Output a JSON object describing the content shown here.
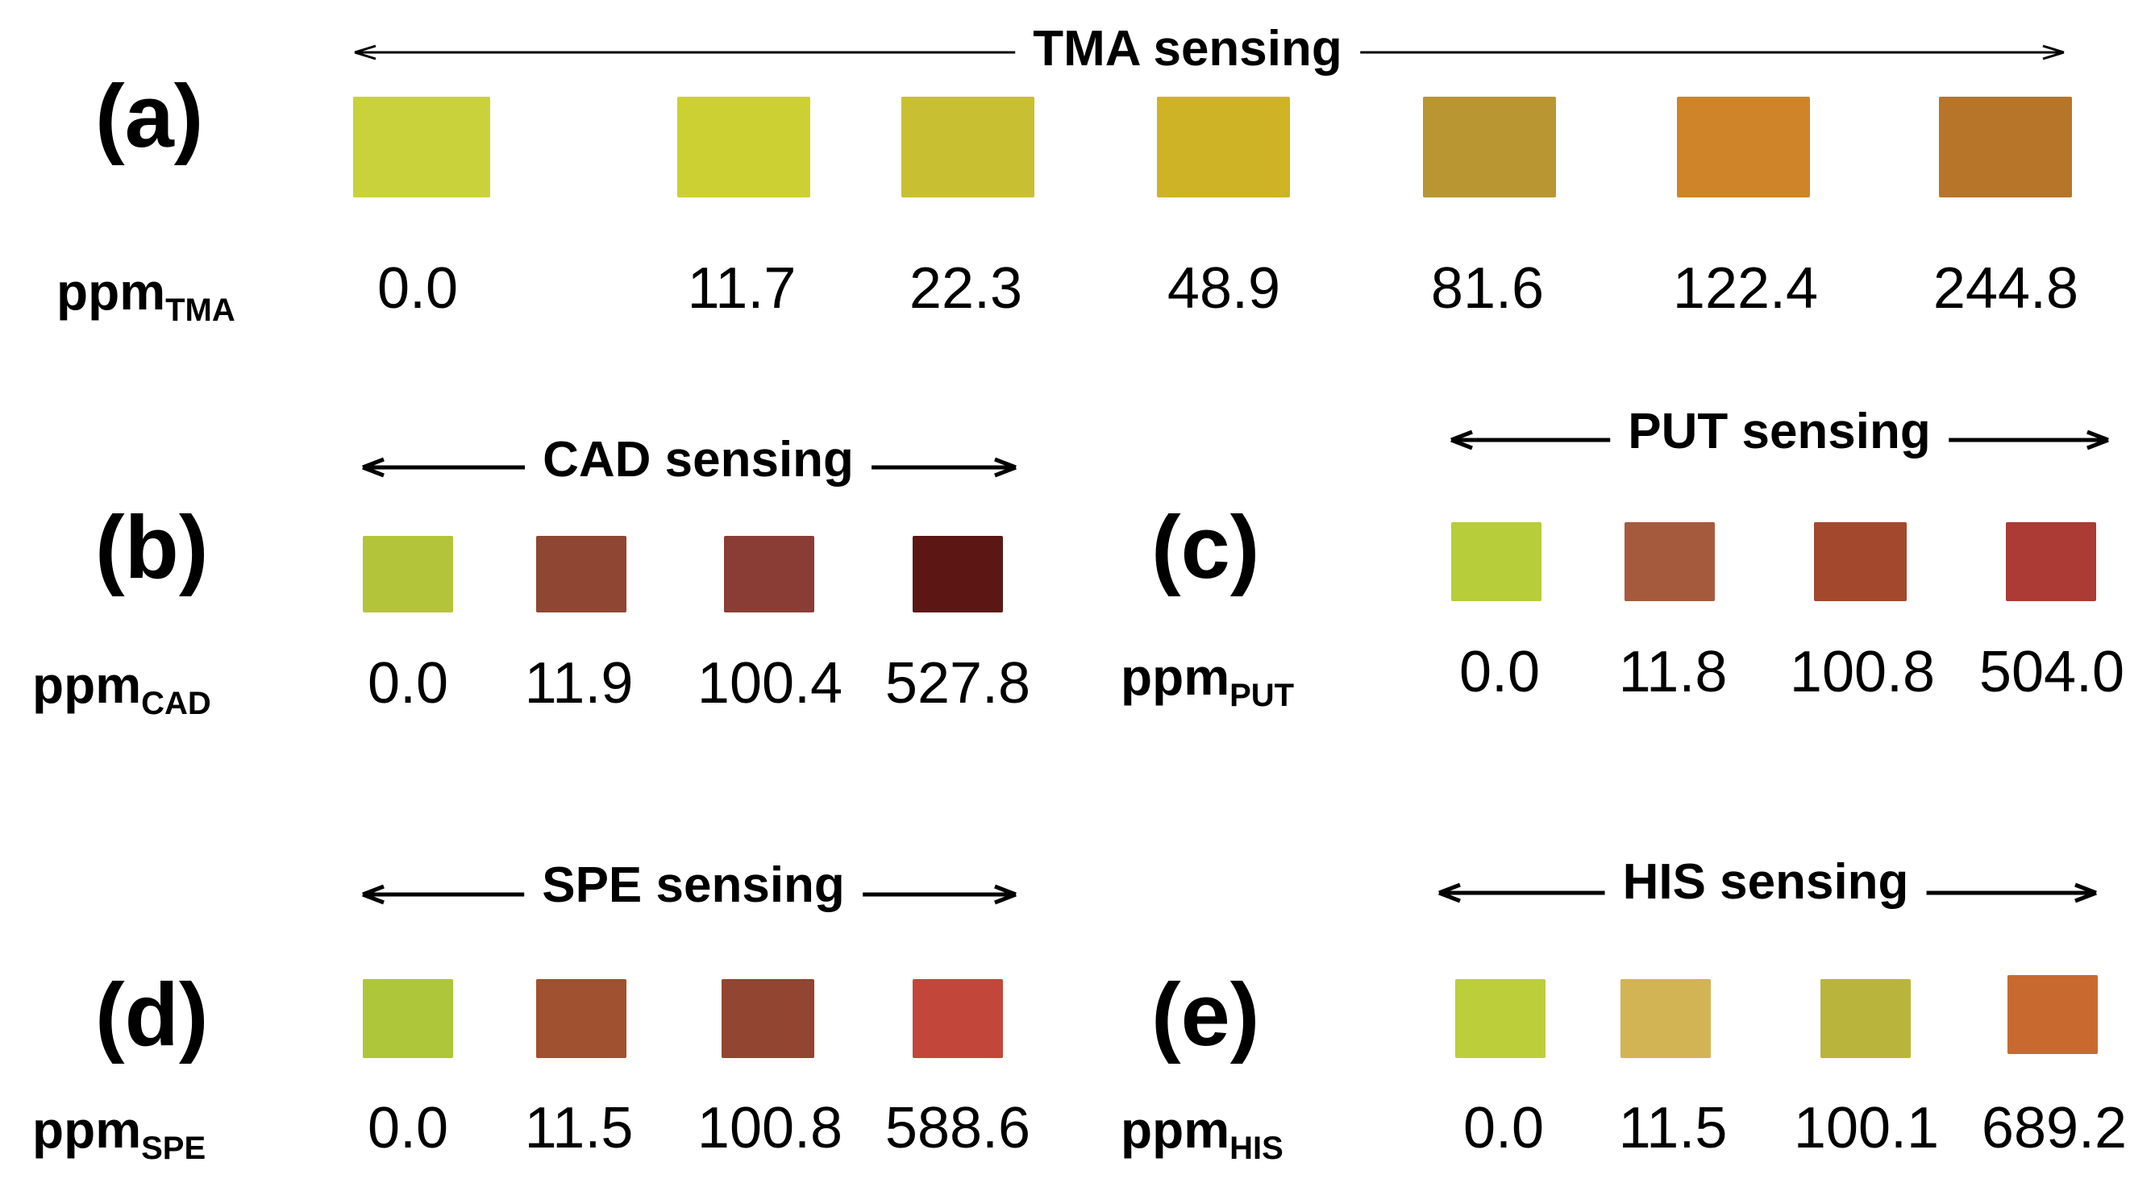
{
  "panels": {
    "a": {
      "label": "(a)",
      "title": "TMA sensing",
      "unit_main": "ppm",
      "unit_sub": "TMA",
      "values": [
        "0.0",
        "11.7",
        "22.3",
        "48.9",
        "81.6",
        "122.4",
        "244.8"
      ],
      "colors": [
        "#c9d23a",
        "#cdd033",
        "#c8bf32",
        "#cfb327",
        "#b99631",
        "#cf8429",
        "#b7752a"
      ]
    },
    "b": {
      "label": "(b)",
      "title": "CAD sensing",
      "unit_main": "ppm",
      "unit_sub": "CAD",
      "values": [
        "0.0",
        "11.9",
        "100.4",
        "527.8"
      ],
      "colors": [
        "#b4c43a",
        "#8f4632",
        "#8a3d35",
        "#5c1715"
      ]
    },
    "c": {
      "label": "(c)",
      "title": "PUT sensing",
      "unit_main": "ppm",
      "unit_sub": "PUT",
      "values": [
        "0.0",
        "11.8",
        "100.8",
        "504.0"
      ],
      "colors": [
        "#b7cd39",
        "#a55a3e",
        "#a4482d",
        "#ac3a35"
      ]
    },
    "d": {
      "label": "(d)",
      "title": "SPE sensing",
      "unit_main": "ppm",
      "unit_sub": "SPE",
      "values": [
        "0.0",
        "11.5",
        "100.8",
        "588.6"
      ],
      "colors": [
        "#aec63a",
        "#a0512f",
        "#924530",
        "#c2473a"
      ]
    },
    "e": {
      "label": "(e)",
      "title": "HIS sensing",
      "unit_main": "ppm",
      "unit_sub": "HIS",
      "values": [
        "0.0",
        "11.5",
        "100.1",
        "689.2"
      ],
      "colors": [
        "#bcce3a",
        "#d3b454",
        "#b9b53c",
        "#c86a2f"
      ]
    }
  }
}
